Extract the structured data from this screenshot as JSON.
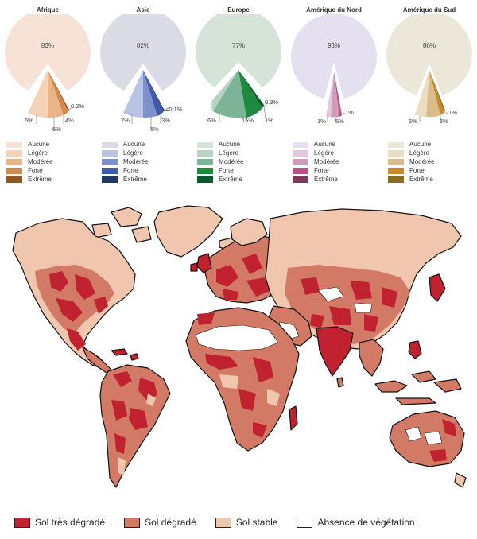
{
  "continents": [
    {
      "name": "Afrique",
      "colors": [
        "#f7e2d8",
        "#f4d3b8",
        "#eab388",
        "#d48a4a",
        "#8e5a22"
      ],
      "main_label": "83%",
      "slice_labels": [
        "0.2%",
        "4%",
        "6%",
        "6%"
      ]
    },
    {
      "name": "Asie",
      "colors": [
        "#dbdbe6",
        "#b9c3e3",
        "#7d90cc",
        "#3e5aa8",
        "#213862"
      ],
      "main_label": "82%",
      "slice_labels": [
        "<0.1%",
        "3%",
        "5%",
        "7%"
      ]
    },
    {
      "name": "Europe",
      "colors": [
        "#d6e3d9",
        "#b7d3c1",
        "#7db497",
        "#1e8a3f",
        "#0c5a27"
      ],
      "main_label": "77%",
      "slice_labels": [
        "0.3%",
        "1%",
        "15%",
        "6%"
      ]
    },
    {
      "name": "Amérique du Nord",
      "colors": [
        "#e4e0f0",
        "#e3c7dc",
        "#d19ab9",
        "#b85386",
        "#7a3a5c"
      ],
      "main_label": "93%",
      "slice_labels": [
        "1%",
        "5%",
        "1%"
      ]
    },
    {
      "name": "Amérique du Sud",
      "colors": [
        "#ece8d9",
        "#ecdcc0",
        "#d9bc8c",
        "#c48a2c",
        "#8c6a24"
      ],
      "main_label": "86%",
      "slice_labels": [
        "1%",
        "6%",
        "6%"
      ]
    }
  ],
  "pie_legend_labels": [
    "Aucune",
    "Légère",
    "Modérée",
    "Forte",
    "Extrême"
  ],
  "map": {
    "colors": {
      "very_degraded": "#c0222f",
      "degraded": "#d37a66",
      "stable": "#f1c6ae",
      "no_vegetation": "#ffffff",
      "outline": "#111111"
    },
    "legend": [
      {
        "label": "Sol très dégradé",
        "color": "#c0222f"
      },
      {
        "label": "Sol dégradé",
        "color": "#d37a66"
      },
      {
        "label": "Sol stable",
        "color": "#f1c6ae"
      },
      {
        "label": "Absence de végétation",
        "color": "#ffffff"
      }
    ]
  }
}
